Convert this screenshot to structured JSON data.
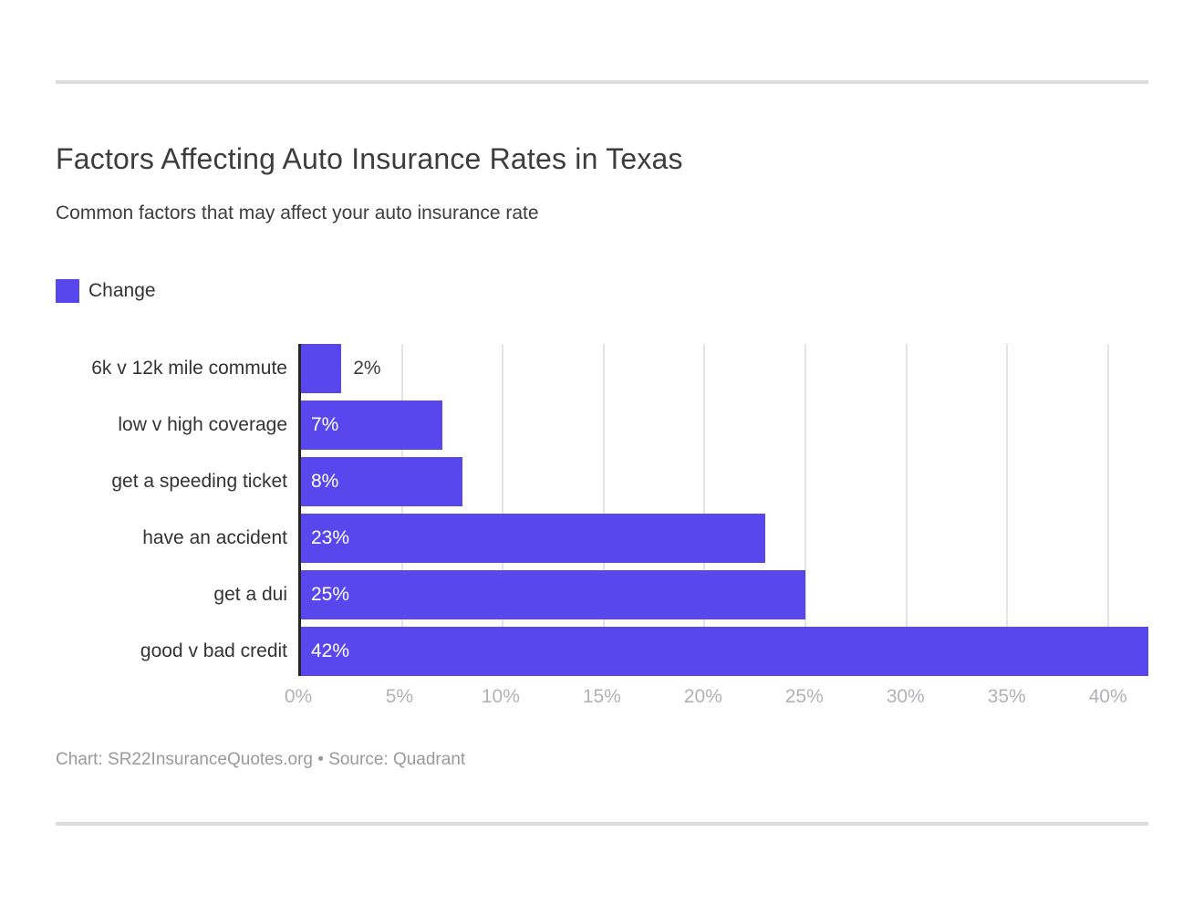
{
  "page": {
    "title": "Factors Affecting Auto Insurance Rates in Texas",
    "subtitle": "Common factors that may affect your auto insurance rate",
    "footer": "Chart: SR22InsuranceQuotes.org • Source: Quadrant"
  },
  "legend": {
    "label": "Change",
    "swatch_color": "#5747ec"
  },
  "chart_data": {
    "type": "bar",
    "orientation": "horizontal",
    "title": "Factors Affecting Auto Insurance Rates in Texas",
    "subtitle": "Common factors that may affect your auto insurance rate",
    "series_name": "Change",
    "categories": [
      "6k v 12k mile commute",
      "low v high coverage",
      "get a speeding ticket",
      "have an accident",
      "get a dui",
      "good v bad credit"
    ],
    "values": [
      2,
      7,
      8,
      23,
      25,
      42
    ],
    "value_labels": [
      "2%",
      "7%",
      "8%",
      "23%",
      "25%",
      "42%"
    ],
    "xlabel": "",
    "ylabel": "",
    "xlim": [
      0,
      42
    ],
    "tick_values": [
      0,
      5,
      10,
      15,
      20,
      25,
      30,
      35,
      40
    ],
    "tick_labels": [
      "0%",
      "5%",
      "10%",
      "15%",
      "20%",
      "25%",
      "30%",
      "35%",
      "40%"
    ],
    "bar_color": "#5747ec",
    "grid": true,
    "legend_position": "top-left",
    "source": "Chart: SR22InsuranceQuotes.org • Source: Quadrant"
  }
}
